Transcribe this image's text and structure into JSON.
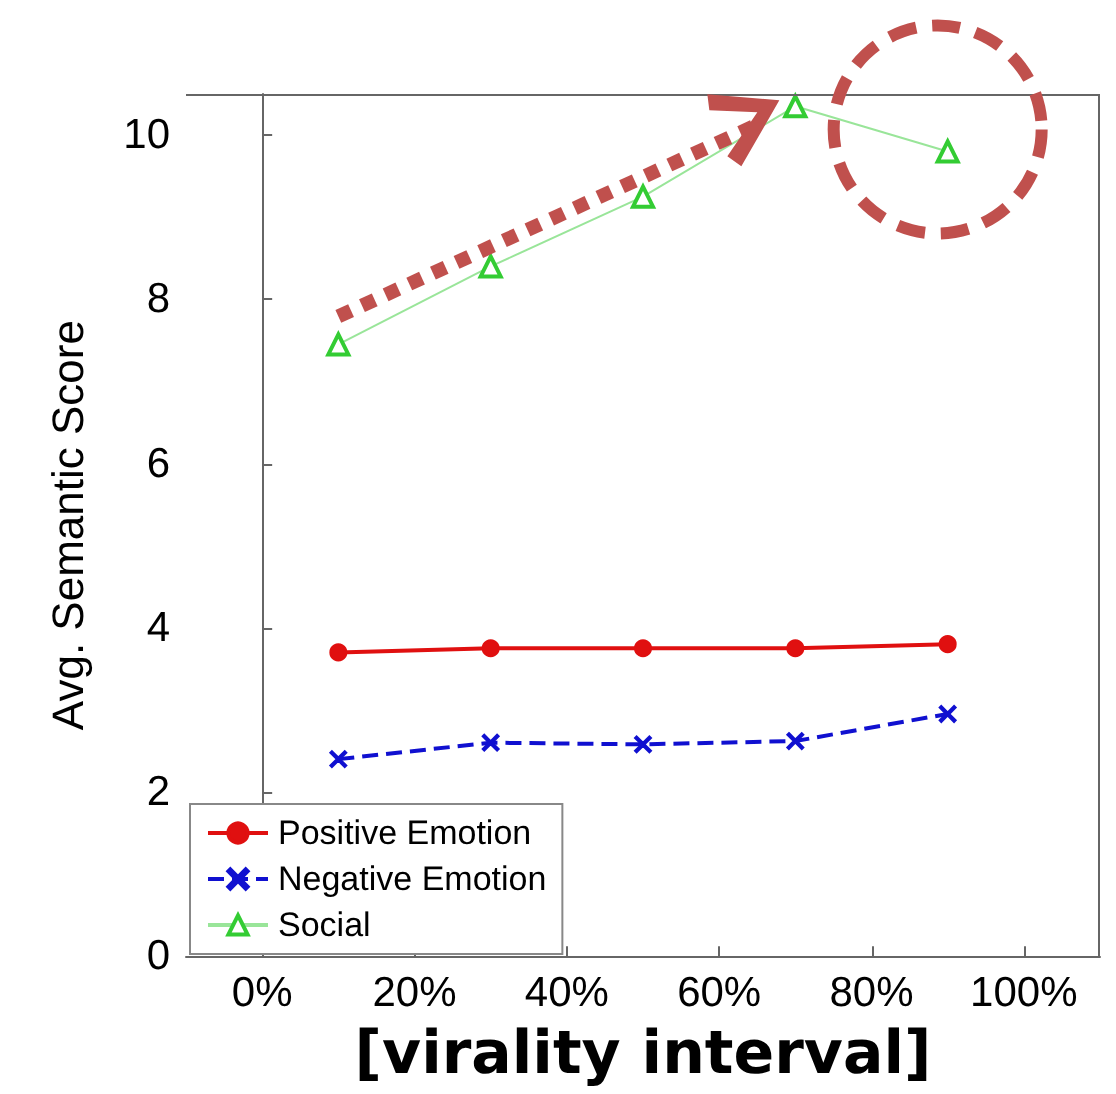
{
  "chart_data": {
    "type": "line",
    "xlabel": "[virality interval]",
    "ylabel": "Avg. Semantic Score",
    "x": [
      10,
      30,
      50,
      70,
      90
    ],
    "series": [
      {
        "name": "Positive Emotion",
        "color": "#e01010",
        "marker": "circle",
        "line_style": "solid",
        "values": [
          3.7,
          3.75,
          3.75,
          3.75,
          3.8
        ]
      },
      {
        "name": "Negative Emotion",
        "color": "#1010d0",
        "marker": "cross",
        "line_style": "dashed",
        "values": [
          2.4,
          2.6,
          2.58,
          2.62,
          2.95
        ]
      },
      {
        "name": "Social",
        "color": "#33cc33",
        "marker": "triangle",
        "line_style": "solid",
        "values": [
          7.45,
          8.4,
          9.25,
          10.35,
          9.8
        ]
      }
    ],
    "xlim": [
      -10,
      110
    ],
    "xticks": [
      {
        "value": 0,
        "label": "0%"
      },
      {
        "value": 20,
        "label": "20%"
      },
      {
        "value": 40,
        "label": "40%"
      },
      {
        "value": 60,
        "label": "60%"
      },
      {
        "value": 80,
        "label": "80%"
      },
      {
        "value": 100,
        "label": "100%"
      }
    ],
    "ylim": [
      0,
      10.5
    ],
    "yticks": [
      0,
      2,
      4,
      6,
      8,
      10
    ],
    "grid": false,
    "legend": "bottom left"
  }
}
